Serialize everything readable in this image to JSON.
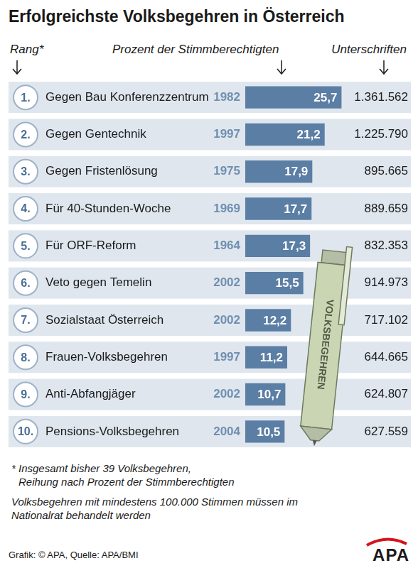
{
  "chart_data": {
    "type": "bar",
    "orientation": "horizontal",
    "title": "Erfolgreichste Volksbegehren in Österreich",
    "column_heads": [
      "Rang*",
      "Prozent der Stimmberechtigten",
      "Unterschriften"
    ],
    "ranks": [
      "1.",
      "2.",
      "3.",
      "4.",
      "5.",
      "6.",
      "7.",
      "8.",
      "9.",
      "10."
    ],
    "categories": [
      "Gegen Bau Konferenzzentrum",
      "Gegen Gentechnik",
      "Gegen Fristenlösung",
      "Für 40-Stunden-Woche",
      "Für ORF-Reform",
      "Veto gegen Temelin",
      "Sozialstaat Österreich",
      "Frauen-Volksbegehren",
      "Anti-Abfangjäger",
      "Pensions-Volksbegehren"
    ],
    "years": [
      1982,
      1997,
      1975,
      1969,
      1964,
      2002,
      2002,
      1997,
      2002,
      2004
    ],
    "values": [
      25.7,
      21.2,
      17.9,
      17.7,
      17.3,
      15.5,
      12.2,
      11.2,
      10.7,
      10.5
    ],
    "value_labels": [
      "25,7",
      "21,2",
      "17,9",
      "17,7",
      "17,3",
      "15,5",
      "12,2",
      "11,2",
      "10,7",
      "10,5"
    ],
    "signatures": [
      1361562,
      1225790,
      895665,
      889659,
      832353,
      914973,
      717102,
      644665,
      624807,
      627559
    ],
    "signature_labels": [
      "1.361.562",
      "1.225.790",
      "895.665",
      "889.659",
      "832.353",
      "914.973",
      "717.102",
      "644.665",
      "624.807",
      "627.559"
    ],
    "color": "#5b7ea4",
    "xlim": [
      0,
      26
    ],
    "data_labels": true,
    "tick_labels": false,
    "grid": false,
    "pen_label": "VOLKSBEGEHREN",
    "footnotes": [
      [
        "* Insgesamt bisher 39 Volksbegehren,",
        "Reihung nach Prozent der Stimmberechtigten"
      ],
      [
        "Volksbegehren mit mindestens 100.000 Stimmen müssen im",
        "Nationalrat behandelt werden"
      ]
    ],
    "source": "Grafik: © APA, Quelle: APA/BMI",
    "logo": "APA"
  }
}
